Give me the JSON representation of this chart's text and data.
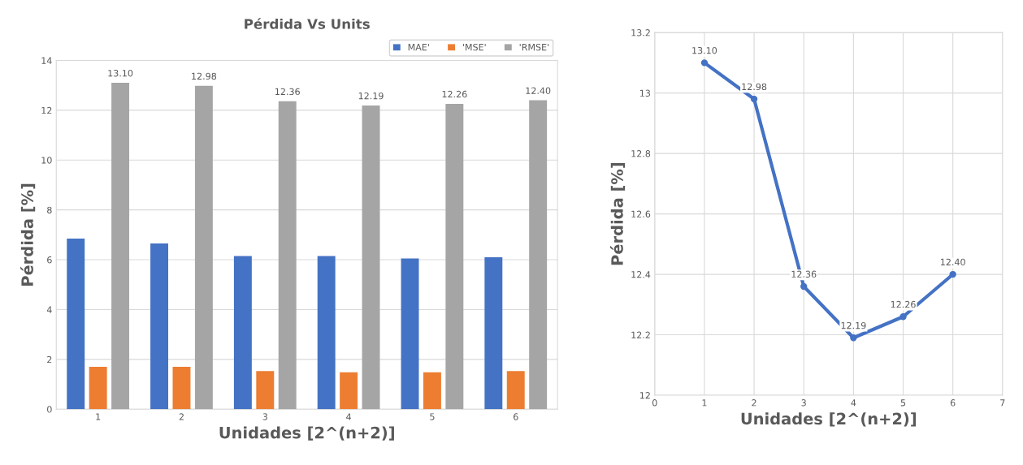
{
  "chart_data": [
    {
      "type": "bar",
      "title": "Pérdida Vs Units",
      "xlabel": "Unidades [2^(n+2)]",
      "ylabel": "Pérdida [%]",
      "categories": [
        "1",
        "2",
        "3",
        "4",
        "5",
        "6"
      ],
      "series": [
        {
          "name": "MAE'",
          "color": "#4472c4",
          "values": [
            6.85,
            6.65,
            6.15,
            6.15,
            6.05,
            6.1
          ]
        },
        {
          "name": "'MSE'",
          "color": "#ed7d31",
          "values": [
            1.7,
            1.7,
            1.53,
            1.48,
            1.48,
            1.53
          ]
        },
        {
          "name": "'RMSE'",
          "color": "#a5a5a5",
          "values": [
            13.1,
            12.98,
            12.36,
            12.19,
            12.26,
            12.4
          ],
          "value_labels": [
            "13.10",
            "12.98",
            "12.36",
            "12.19",
            "12.26",
            "12.40"
          ]
        }
      ],
      "ylim": [
        0,
        14
      ],
      "yticks": [
        0,
        2,
        4,
        6,
        8,
        10,
        12,
        14
      ],
      "grid": "y",
      "legend": "top right"
    },
    {
      "type": "line",
      "xlabel": "Unidades [2^(n+2)]",
      "ylabel": "Pérdida [%]",
      "x": [
        1,
        2,
        3,
        4,
        5,
        6
      ],
      "series": [
        {
          "color": "#4472c4",
          "values": [
            13.1,
            12.98,
            12.36,
            12.19,
            12.26,
            12.4
          ],
          "value_labels": [
            "13.10",
            "12.98",
            "12.36",
            "12.19",
            "12.26",
            "12.40"
          ]
        }
      ],
      "xlim": [
        0,
        7
      ],
      "xticks": [
        0,
        1,
        2,
        3,
        4,
        5,
        6,
        7
      ],
      "ylim": [
        12,
        13.2
      ],
      "yticks": [
        12,
        {
          "value": 12.2,
          "label": "12.2"
        },
        {
          "value": 12.4,
          "label": "12.4"
        },
        {
          "value": 12.6,
          "label": "12.6"
        },
        {
          "value": 12.8,
          "label": "12.8"
        },
        13,
        {
          "value": 13.2,
          "label": "13.2"
        }
      ],
      "grid": true,
      "marker": "circle",
      "line_style": "solid"
    }
  ]
}
